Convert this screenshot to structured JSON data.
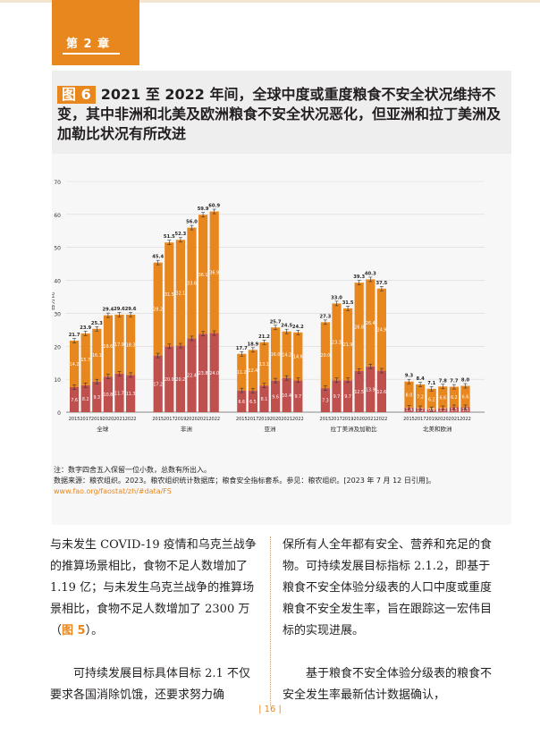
{
  "header": {
    "chapter": "第 2 章",
    "accent_color": "#e8871e"
  },
  "figure": {
    "tag": "图 6",
    "title": "2021 至 2022 年间，全球中度或重度粮食不安全状况维持不变，其中非洲和北美及欧洲粮食不安全状况恶化，但亚洲和拉丁美洲及加勒比状况有所改进"
  },
  "chart_data": {
    "type": "bar",
    "stacked": true,
    "ylabel": "百分比",
    "ylim": [
      0,
      70
    ],
    "yticks": [
      0,
      10,
      20,
      30,
      40,
      50,
      60,
      70
    ],
    "years": [
      "2015",
      "2017",
      "2019",
      "2020",
      "2021",
      "2022"
    ],
    "groups": [
      "全球",
      "非洲",
      "亚洲",
      "拉丁美洲及加勒比",
      "北美和欧洲"
    ],
    "series": [
      {
        "name": "重度粮食不安全",
        "color": "#c0504d",
        "values": [
          [
            7.6,
            8.2,
            9.3,
            10.8,
            11.7,
            11.3
          ],
          [
            17.2,
            20.0,
            20.2,
            22.4,
            23.8,
            24.0
          ],
          [
            6.6,
            6.5,
            8.1,
            9.6,
            10.4,
            9.7
          ],
          [
            7.3,
            9.7,
            9.7,
            12.5,
            13.9,
            12.6
          ],
          [
            1.4,
            1.2,
            0.9,
            1.2,
            1.5,
            1.5
          ]
        ]
      },
      {
        "name": "中度粮食不安全",
        "color": "#e8871e",
        "values": [
          [
            14.2,
            15.7,
            16.1,
            18.6,
            17.9,
            18.3
          ],
          [
            28.2,
            31.5,
            32.1,
            33.6,
            36.1,
            36.9
          ],
          [
            11.2,
            12.4,
            13.1,
            16.0,
            14.2,
            14.6
          ],
          [
            20.0,
            23.3,
            21.9,
            26.8,
            26.4,
            24.9
          ],
          [
            8.0,
            7.2,
            6.2,
            6.6,
            6.2,
            6.6
          ]
        ]
      }
    ],
    "totals": [
      [
        21.7,
        23.9,
        25.3,
        29.4,
        29.6,
        29.6
      ],
      [
        45.4,
        51.5,
        52.3,
        56.0,
        59.9,
        60.9
      ],
      [
        17.7,
        18.9,
        21.2,
        25.7,
        24.5,
        24.2
      ],
      [
        27.3,
        33.0,
        31.5,
        39.3,
        40.3,
        37.5
      ],
      [
        9.3,
        8.4,
        7.1,
        7.8,
        7.7,
        8.0
      ]
    ]
  },
  "notes": {
    "line1": "注：数字四舍五入保留一位小数，总数有所出入。",
    "line2": "数据来源：粮农组织。2023。粮农组织统计数据库；粮食安全指标套系。参见：粮农组织。[2023 年 7 月 12 日引用]。",
    "url": "www.fao.org/faostat/zh/#data/FS"
  },
  "body": {
    "left_p1_a": "与未发生 COVID-19 疫情和乌克兰战争的推算场景相比，食物不足人数增加了 1.19 亿；与未发生乌克兰战争的推算场景相比，食物不足人数增加了 2300 万（",
    "left_p1_ref": "图 5",
    "left_p1_b": "）。",
    "left_p2": "可持续发展目标具体目标 2.1 不仅要求各国消除饥饿，还要求努力确",
    "right_p1": "保所有人全年都有安全、营养和充足的食物。可持续发展目标指标 2.1.2，即基于粮食不安全体验分级表的人口中度或重度粮食不安全发生率，旨在跟踪这一宏伟目标的实现进展。",
    "right_p2": "基于粮食不安全体验分级表的粮食不安全发生率最新估计数据确认，"
  },
  "footer": {
    "page": "| 16 |"
  }
}
